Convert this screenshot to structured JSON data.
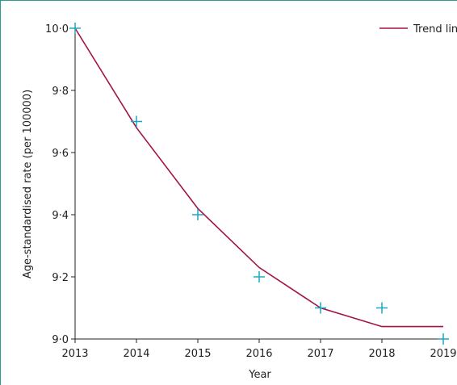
{
  "chart_data": {
    "type": "scatter",
    "title": "",
    "xlabel": "Year",
    "ylabel": "Age-standardised rate (per 100000)",
    "xlim": [
      2013,
      2019
    ],
    "ylim": [
      9.0,
      10.0
    ],
    "x_ticks": [
      "2013",
      "2014",
      "2015",
      "2016",
      "2017",
      "2018",
      "2019"
    ],
    "y_ticks": [
      "9·0",
      "9·2",
      "9·4",
      "9·6",
      "9·8",
      "10·0"
    ],
    "grid": false,
    "legend_position": "top-right",
    "series": [
      {
        "kind": "points",
        "marker": "plus",
        "color": "#1aa7c4",
        "x": [
          2013,
          2014,
          2015,
          2016,
          2017,
          2018,
          2019
        ],
        "y": [
          10.0,
          9.7,
          9.4,
          9.2,
          9.1,
          9.1,
          9.0
        ]
      },
      {
        "kind": "line",
        "name": "Trend line",
        "color": "#a3124a",
        "x": [
          2013,
          2014,
          2015,
          2016,
          2017,
          2018,
          2019
        ],
        "y": [
          10.0,
          9.68,
          9.42,
          9.23,
          9.1,
          9.04,
          9.04
        ]
      }
    ]
  }
}
